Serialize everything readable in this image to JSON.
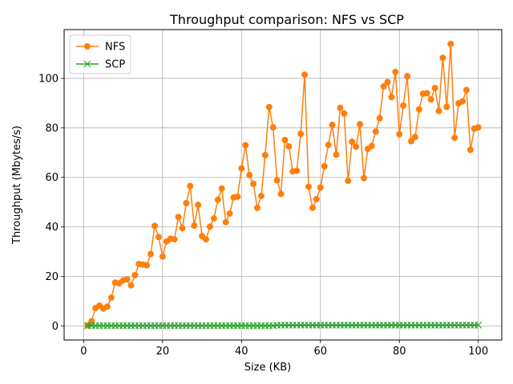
{
  "chart_data": {
    "type": "line",
    "title": "Throughput comparison: NFS vs SCP",
    "xlabel": "Size (KB)",
    "ylabel": "Throughput (Mbytes/s)",
    "xlim": [
      -4.95,
      105.95
    ],
    "ylim": [
      -5.7,
      119.7
    ],
    "xticks": [
      0,
      20,
      40,
      60,
      80,
      100
    ],
    "yticks": [
      0,
      20,
      40,
      60,
      80,
      100
    ],
    "grid": true,
    "legend_position": "top-left",
    "series": [
      {
        "name": "NFS",
        "color": "#ff7f0e",
        "marker": "circle",
        "x": [
          1,
          2,
          3,
          4,
          5,
          6,
          7,
          8,
          9,
          10,
          11,
          12,
          13,
          14,
          15,
          16,
          17,
          18,
          19,
          20,
          21,
          22,
          23,
          24,
          25,
          26,
          27,
          28,
          29,
          30,
          31,
          32,
          33,
          34,
          35,
          36,
          37,
          38,
          39,
          40,
          41,
          42,
          43,
          44,
          45,
          46,
          47,
          48,
          49,
          50,
          51,
          52,
          53,
          54,
          55,
          56,
          57,
          58,
          59,
          60,
          61,
          62,
          63,
          64,
          65,
          66,
          67,
          68,
          69,
          70,
          71,
          72,
          73,
          74,
          75,
          76,
          77,
          78,
          79,
          80,
          81,
          82,
          83,
          84,
          85,
          86,
          87,
          88,
          89,
          90,
          91,
          92,
          93,
          94,
          95,
          96,
          97,
          98,
          99,
          100
        ],
        "y": [
          0.2,
          1.9,
          7.2,
          8.2,
          7.0,
          7.8,
          11.4,
          17.5,
          17.2,
          18.4,
          18.8,
          16.4,
          20.5,
          25.0,
          24.8,
          24.5,
          29.0,
          40.4,
          35.9,
          28.0,
          34.1,
          35.2,
          35.0,
          44.0,
          39.5,
          49.6,
          56.5,
          40.5,
          48.9,
          36.3,
          35.0,
          40.1,
          43.4,
          51.0,
          55.5,
          41.9,
          45.4,
          51.9,
          52.2,
          63.6,
          73.0,
          60.9,
          57.4,
          47.7,
          52.5,
          69.0,
          88.4,
          80.2,
          58.8,
          53.3,
          75.1,
          72.5,
          62.4,
          62.7,
          77.6,
          101.5,
          56.2,
          47.7,
          51.2,
          55.9,
          64.5,
          73.1,
          81.2,
          69.2,
          88.1,
          85.8,
          58.6,
          74.4,
          72.4,
          81.5,
          59.7,
          71.5,
          72.7,
          78.5,
          83.9,
          96.7,
          98.5,
          92.4,
          102.6,
          77.4,
          89.0,
          100.9,
          74.6,
          76.3,
          87.5,
          93.8,
          94.0,
          91.5,
          96.1,
          86.8,
          108.3,
          88.5,
          113.9,
          76.0,
          89.9,
          90.7,
          95.3,
          71.1,
          79.7,
          80.2
        ]
      },
      {
        "name": "SCP",
        "color": "#2ca02c",
        "marker": "x",
        "x": [
          1,
          2,
          3,
          4,
          5,
          6,
          7,
          8,
          9,
          10,
          11,
          12,
          13,
          14,
          15,
          16,
          17,
          18,
          19,
          20,
          21,
          22,
          23,
          24,
          25,
          26,
          27,
          28,
          29,
          30,
          31,
          32,
          33,
          34,
          35,
          36,
          37,
          38,
          39,
          40,
          41,
          42,
          43,
          44,
          45,
          46,
          47,
          48,
          49,
          50,
          51,
          52,
          53,
          54,
          55,
          56,
          57,
          58,
          59,
          60,
          61,
          62,
          63,
          64,
          65,
          66,
          67,
          68,
          69,
          70,
          71,
          72,
          73,
          74,
          75,
          76,
          77,
          78,
          79,
          80,
          81,
          82,
          83,
          84,
          85,
          86,
          87,
          88,
          89,
          90,
          91,
          92,
          93,
          94,
          95,
          96,
          97,
          98,
          99,
          100
        ],
        "y": [
          0.1,
          0.1,
          0.1,
          0.1,
          0.1,
          0.1,
          0.1,
          0.1,
          0.1,
          0.1,
          0.1,
          0.1,
          0.1,
          0.1,
          0.1,
          0.1,
          0.1,
          0.1,
          0.1,
          0.1,
          0.1,
          0.1,
          0.1,
          0.1,
          0.1,
          0.1,
          0.1,
          0.1,
          0.1,
          0.1,
          0.1,
          0.1,
          0.1,
          0.1,
          0.1,
          0.1,
          0.1,
          0.1,
          0.1,
          0.1,
          0.1,
          0.1,
          0.1,
          0.1,
          0.1,
          0.1,
          0.1,
          0.1,
          0.3,
          0.3,
          0.3,
          0.3,
          0.3,
          0.3,
          0.3,
          0.3,
          0.3,
          0.3,
          0.3,
          0.3,
          0.3,
          0.3,
          0.3,
          0.3,
          0.3,
          0.3,
          0.3,
          0.3,
          0.3,
          0.3,
          0.3,
          0.3,
          0.3,
          0.3,
          0.3,
          0.3,
          0.3,
          0.3,
          0.3,
          0.3,
          0.3,
          0.3,
          0.3,
          0.3,
          0.3,
          0.3,
          0.3,
          0.3,
          0.3,
          0.3,
          0.3,
          0.3,
          0.3,
          0.3,
          0.3,
          0.3,
          0.3,
          0.3,
          0.3,
          0.3
        ]
      }
    ]
  }
}
